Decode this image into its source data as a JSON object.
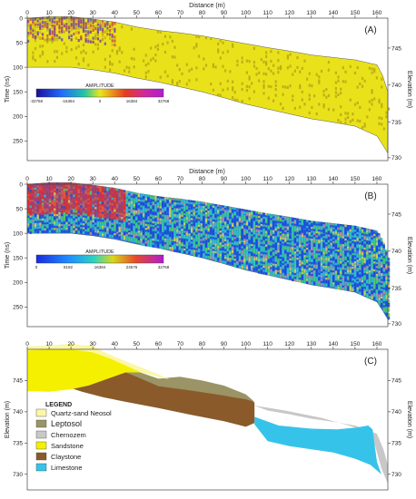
{
  "chart_data": [
    {
      "panel": "A",
      "type": "heatmap",
      "panel_label": "(A)",
      "xlabel": "Distance (m)",
      "ylabel_left": "Time (ns)",
      "ylabel_right": "Elevation (m)",
      "x_ticks": [
        "0",
        "10",
        "20",
        "30",
        "40",
        "50",
        "60",
        "70",
        "80",
        "90",
        "100",
        "110",
        "120",
        "130",
        "140",
        "150",
        "160"
      ],
      "y_ticks_left": [
        "0",
        "50",
        "100",
        "150",
        "200",
        "250"
      ],
      "y_ticks_right": [
        "745",
        "740",
        "735",
        "730"
      ],
      "xlim": [
        0,
        165
      ],
      "ylim_time": [
        0,
        290
      ],
      "colorbar_title": "AMPLITUDE",
      "colorbar_ticks": [
        "-32768",
        "-16384",
        "0",
        "16384",
        "32768"
      ],
      "surface_time_ns": [
        [
          0,
          0
        ],
        [
          10,
          -3
        ],
        [
          20,
          -3
        ],
        [
          30,
          2
        ],
        [
          40,
          8
        ],
        [
          50,
          18
        ],
        [
          60,
          25
        ],
        [
          70,
          30
        ],
        [
          80,
          36
        ],
        [
          90,
          44
        ],
        [
          100,
          52
        ],
        [
          110,
          60
        ],
        [
          120,
          67
        ],
        [
          130,
          75
        ],
        [
          140,
          80
        ],
        [
          150,
          85
        ],
        [
          160,
          95
        ],
        [
          163,
          120
        ],
        [
          165,
          150
        ]
      ],
      "bottom_time_ns": [
        [
          0,
          100
        ],
        [
          10,
          100
        ],
        [
          20,
          100
        ],
        [
          30,
          105
        ],
        [
          40,
          112
        ],
        [
          50,
          122
        ],
        [
          60,
          130
        ],
        [
          70,
          140
        ],
        [
          80,
          150
        ],
        [
          90,
          162
        ],
        [
          100,
          175
        ],
        [
          110,
          185
        ],
        [
          120,
          195
        ],
        [
          130,
          205
        ],
        [
          140,
          212
        ],
        [
          150,
          220
        ],
        [
          160,
          240
        ],
        [
          163,
          260
        ],
        [
          165,
          275
        ]
      ]
    },
    {
      "panel": "B",
      "type": "heatmap",
      "panel_label": "(B)",
      "xlabel": "Distance (m)",
      "ylabel_left": "Time (ns)",
      "ylabel_right": "Elevation (m)",
      "x_ticks": [
        "0",
        "10",
        "20",
        "30",
        "40",
        "50",
        "60",
        "70",
        "80",
        "90",
        "100",
        "110",
        "120",
        "130",
        "140",
        "150",
        "160"
      ],
      "y_ticks_left": [
        "0",
        "50",
        "100",
        "150",
        "200",
        "250"
      ],
      "y_ticks_right": [
        "745",
        "740",
        "735",
        "730"
      ],
      "xlim": [
        0,
        165
      ],
      "ylim_time": [
        0,
        290
      ],
      "colorbar_title": "AMPLITUDE",
      "colorbar_ticks": [
        "0",
        "8192",
        "16384",
        "24576",
        "32768"
      ]
    },
    {
      "panel": "C",
      "type": "area",
      "panel_label": "(C)",
      "ylabel": "Elevation (m)",
      "x_ticks": [
        "0",
        "10",
        "20",
        "30",
        "40",
        "50",
        "60",
        "70",
        "80",
        "90",
        "100",
        "110",
        "120",
        "130",
        "140",
        "150",
        "160"
      ],
      "y_ticks": [
        "745",
        "740",
        "735",
        "730"
      ],
      "xlim": [
        0,
        165
      ],
      "ylim": [
        727.5,
        750
      ],
      "legend_title": "LEGEND",
      "legend": [
        {
          "label": "Quartz-sand Neosol",
          "color": "#fbf7a5"
        },
        {
          "label": "Leptosol",
          "color": "#9a9466"
        },
        {
          "label": "Chernozem",
          "color": "#c8c8c8"
        },
        {
          "label": "Sandstone",
          "color": "#f4f000"
        },
        {
          "label": "Claystone",
          "color": "#8a5a2b"
        },
        {
          "label": "Limestone",
          "color": "#36c3ea"
        }
      ],
      "layers": [
        {
          "name": "Chernozem",
          "polygon": [
            [
              100,
              741.5
            ],
            [
              110,
              740.2
            ],
            [
              120,
              739.6
            ],
            [
              130,
              738.9
            ],
            [
              140,
              738.4
            ],
            [
              150,
              737.8
            ],
            [
              160,
              736.5
            ],
            [
              163,
              734
            ],
            [
              165,
              731.5
            ],
            [
              165,
              728.5
            ],
            [
              162,
              731
            ],
            [
              158,
              736
            ],
            [
              150,
              737.5
            ],
            [
              135,
              739
            ],
            [
              118,
              740.2
            ],
            [
              104,
              741
            ]
          ]
        },
        {
          "name": "Limestone",
          "polygon": [
            [
              104,
              739.2
            ],
            [
              115,
              737.8
            ],
            [
              130,
              737.3
            ],
            [
              142,
              737.2
            ],
            [
              151,
              737.5
            ],
            [
              156,
              737.8
            ],
            [
              158,
              737.2
            ],
            [
              160,
              732
            ],
            [
              162,
              730
            ],
            [
              157,
              731.5
            ],
            [
              150,
              732.5
            ],
            [
              140,
              733.5
            ],
            [
              130,
              734
            ],
            [
              120,
              734.5
            ],
            [
              110,
              735.3
            ],
            [
              104,
              738
            ]
          ]
        },
        {
          "name": "Claystone",
          "polygon": [
            [
              28,
              744.5
            ],
            [
              45,
              746.5
            ],
            [
              52,
              745.8
            ],
            [
              60,
              744.5
            ],
            [
              75,
              744
            ],
            [
              90,
              743
            ],
            [
              100,
              742.4
            ],
            [
              104,
              741.5
            ],
            [
              104,
              738.2
            ],
            [
              100,
              737.6
            ],
            [
              90,
              738.5
            ],
            [
              75,
              739.5
            ],
            [
              60,
              740.6
            ],
            [
              45,
              741.6
            ],
            [
              35,
              742.3
            ],
            [
              25,
              743.2
            ],
            [
              20,
              743.8
            ]
          ]
        },
        {
          "name": "Leptosol",
          "polygon": [
            [
              40,
              747
            ],
            [
              50,
              746.5
            ],
            [
              60,
              745.3
            ],
            [
              70,
              745.6
            ],
            [
              80,
              745
            ],
            [
              90,
              744.2
            ],
            [
              100,
              742.8
            ],
            [
              104,
              741.6
            ],
            [
              100,
              742
            ],
            [
              88,
              742.7
            ],
            [
              75,
              743.4
            ],
            [
              60,
              744.1
            ],
            [
              50,
              745.6
            ]
          ]
        },
        {
          "name": "Sandstone",
          "polygon": [
            [
              0,
              750.5
            ],
            [
              10,
              750.5
            ],
            [
              20,
              750.8
            ],
            [
              30,
              750.5
            ],
            [
              38,
              749
            ],
            [
              45,
              747.6
            ],
            [
              52,
              746.3
            ],
            [
              45,
              746.3
            ],
            [
              28,
              744.2
            ],
            [
              20,
              743.6
            ],
            [
              10,
              743.2
            ],
            [
              0,
              743.3
            ]
          ]
        },
        {
          "name": "Quartz-sand Neosol",
          "polygon": [
            [
              0,
              750.5
            ],
            [
              10,
              750.6
            ],
            [
              20,
              750.9
            ],
            [
              30,
              750.4
            ],
            [
              40,
              748.8
            ],
            [
              50,
              747.4
            ],
            [
              60,
              746
            ],
            [
              65,
              745.2
            ],
            [
              60,
              745.6
            ],
            [
              52,
              746.3
            ],
            [
              45,
              747.4
            ],
            [
              38,
              748.5
            ],
            [
              30,
              749.5
            ],
            [
              20,
              750
            ],
            [
              10,
              750
            ],
            [
              0,
              749.8
            ]
          ]
        }
      ]
    }
  ]
}
